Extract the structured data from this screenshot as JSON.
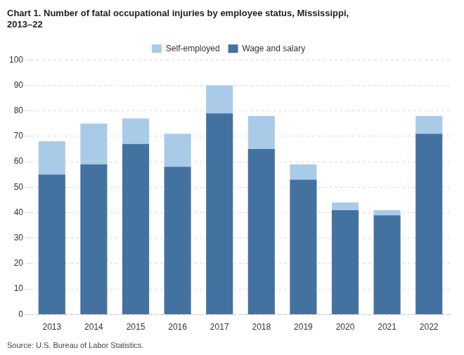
{
  "chart_data": {
    "type": "bar",
    "title": [
      "Chart 1. Number of fatal occupational injuries by employee status, Mississippi,",
      "2013–22"
    ],
    "annotations": [
      "Source: U.S. Bureau of Labor Statistics."
    ],
    "categories": [
      "2013",
      "2014",
      "2015",
      "2016",
      "2017",
      "2018",
      "2019",
      "2020",
      "2021",
      "2022"
    ],
    "series": [
      {
        "name": "Wage and salary",
        "color": "#4472a0",
        "values": [
          55,
          59,
          67,
          58,
          79,
          65,
          53,
          41,
          39,
          71
        ]
      },
      {
        "name": "Self-employed",
        "color": "#aacbe8",
        "values": [
          13,
          16,
          10,
          13,
          11,
          13,
          6,
          3,
          2,
          7
        ]
      }
    ],
    "stacked": true,
    "ylim": [
      0,
      100
    ],
    "yticks": [
      0,
      10,
      20,
      30,
      40,
      50,
      60,
      70,
      80,
      90,
      100
    ],
    "grid": true,
    "legend": "top"
  }
}
